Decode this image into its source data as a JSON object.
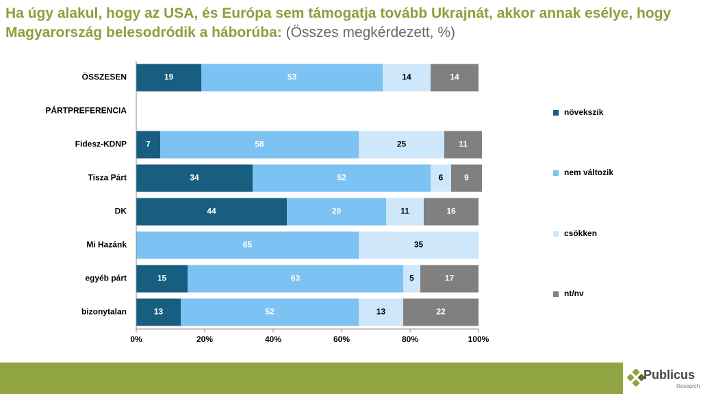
{
  "chart_data": {
    "type": "stacked-bar-horizontal",
    "title": "Ha úgy alakul, hogy az USA, és Európa sem támogatja tovább Ukrajnát, akkor annak esélye, hogy Magyarország belesodródik a háborúba:",
    "subtitle": "(Összes megkérdezett, %)",
    "categories": [
      "ÖSSZESEN",
      "PÁRTPREFERENCIA",
      "Fidesz-KDNP",
      "Tisza Párt",
      "DK",
      "Mi Hazánk",
      "egyéb párt",
      "bizonytalan"
    ],
    "series": [
      {
        "name": "növekszik",
        "color": "#175e80",
        "values": [
          19,
          null,
          7,
          34,
          44,
          null,
          15,
          13
        ]
      },
      {
        "name": "nem változik",
        "color": "#7cc2f3",
        "values": [
          53,
          null,
          58,
          52,
          29,
          65,
          63,
          52
        ]
      },
      {
        "name": "csökken",
        "color": "#cfe7fb",
        "values": [
          14,
          null,
          25,
          6,
          11,
          35,
          5,
          13
        ]
      },
      {
        "name": "nt/nv",
        "color": "#808080",
        "values": [
          14,
          null,
          11,
          9,
          16,
          null,
          17,
          22
        ]
      }
    ],
    "xlim": [
      0,
      100
    ],
    "xticks": [
      {
        "value": 0,
        "label": "0%"
      },
      {
        "value": 20,
        "label": "20%"
      },
      {
        "value": 40,
        "label": "40%"
      },
      {
        "value": 60,
        "label": "60%"
      },
      {
        "value": 80,
        "label": "80%"
      },
      {
        "value": 100,
        "label": "100%"
      }
    ],
    "legend": "right"
  },
  "footer": {
    "logo": "Publicus",
    "logo_sub": "Research"
  }
}
